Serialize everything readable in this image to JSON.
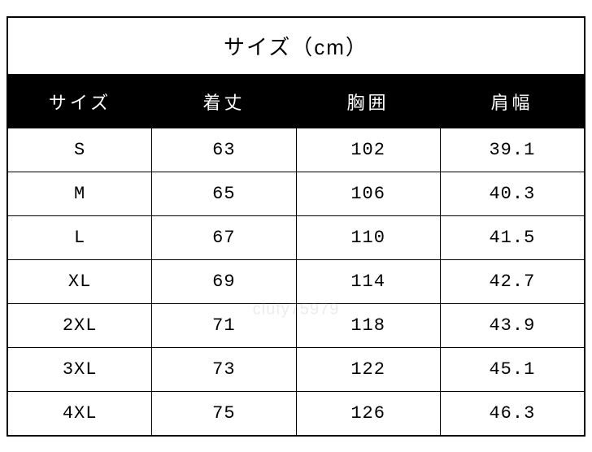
{
  "table": {
    "title": "サイズ（cm）",
    "columns": [
      "サイズ",
      "着丈",
      "胸囲",
      "肩幅"
    ],
    "rows": [
      [
        "S",
        "63",
        "102",
        "39.1"
      ],
      [
        "M",
        "65",
        "106",
        "40.3"
      ],
      [
        "L",
        "67",
        "110",
        "41.5"
      ],
      [
        "XL",
        "69",
        "114",
        "42.7"
      ],
      [
        "2XL",
        "71",
        "118",
        "43.9"
      ],
      [
        "3XL",
        "73",
        "122",
        "45.1"
      ],
      [
        "4XL",
        "75",
        "126",
        "46.3"
      ]
    ],
    "colors": {
      "background": "#ffffff",
      "border": "#000000",
      "header_bg": "#000000",
      "header_text": "#ffffff",
      "cell_text": "#000000"
    },
    "title_fontsize": 26,
    "header_fontsize": 22,
    "cell_fontsize": 22,
    "watermark": "clufy75979"
  }
}
